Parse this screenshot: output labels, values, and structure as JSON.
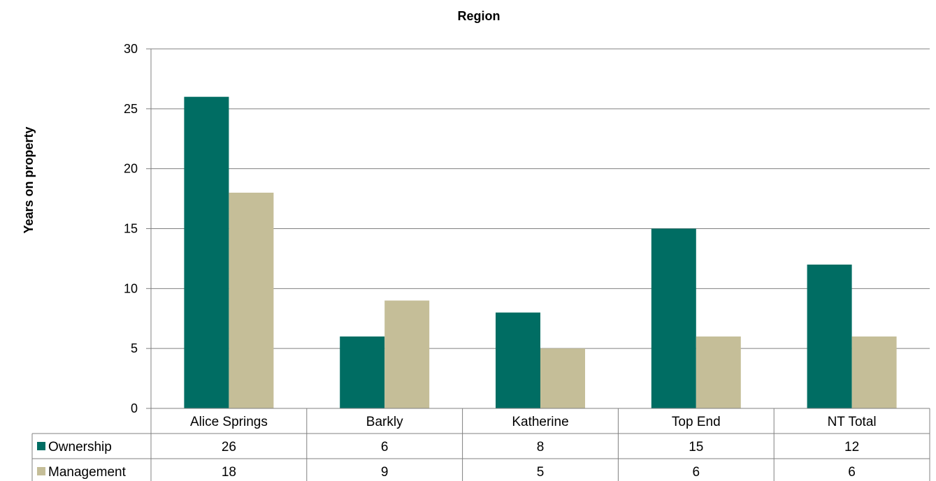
{
  "chart_data": {
    "type": "bar",
    "title": "Region",
    "ylabel": "Years on property",
    "xlabel": "",
    "ylim": [
      0,
      30
    ],
    "yticks": [
      0,
      5,
      10,
      15,
      20,
      25,
      30
    ],
    "grid": true,
    "legend": "data-table",
    "categories": [
      "Alice Springs",
      "Barkly",
      "Katherine",
      "Top End",
      "NT Total"
    ],
    "series": [
      {
        "name": "Ownership",
        "color": "#006d63",
        "values": [
          26,
          6,
          8,
          15,
          12
        ]
      },
      {
        "name": "Management",
        "color": "#c5be98",
        "values": [
          18,
          9,
          5,
          6,
          6
        ]
      }
    ]
  }
}
